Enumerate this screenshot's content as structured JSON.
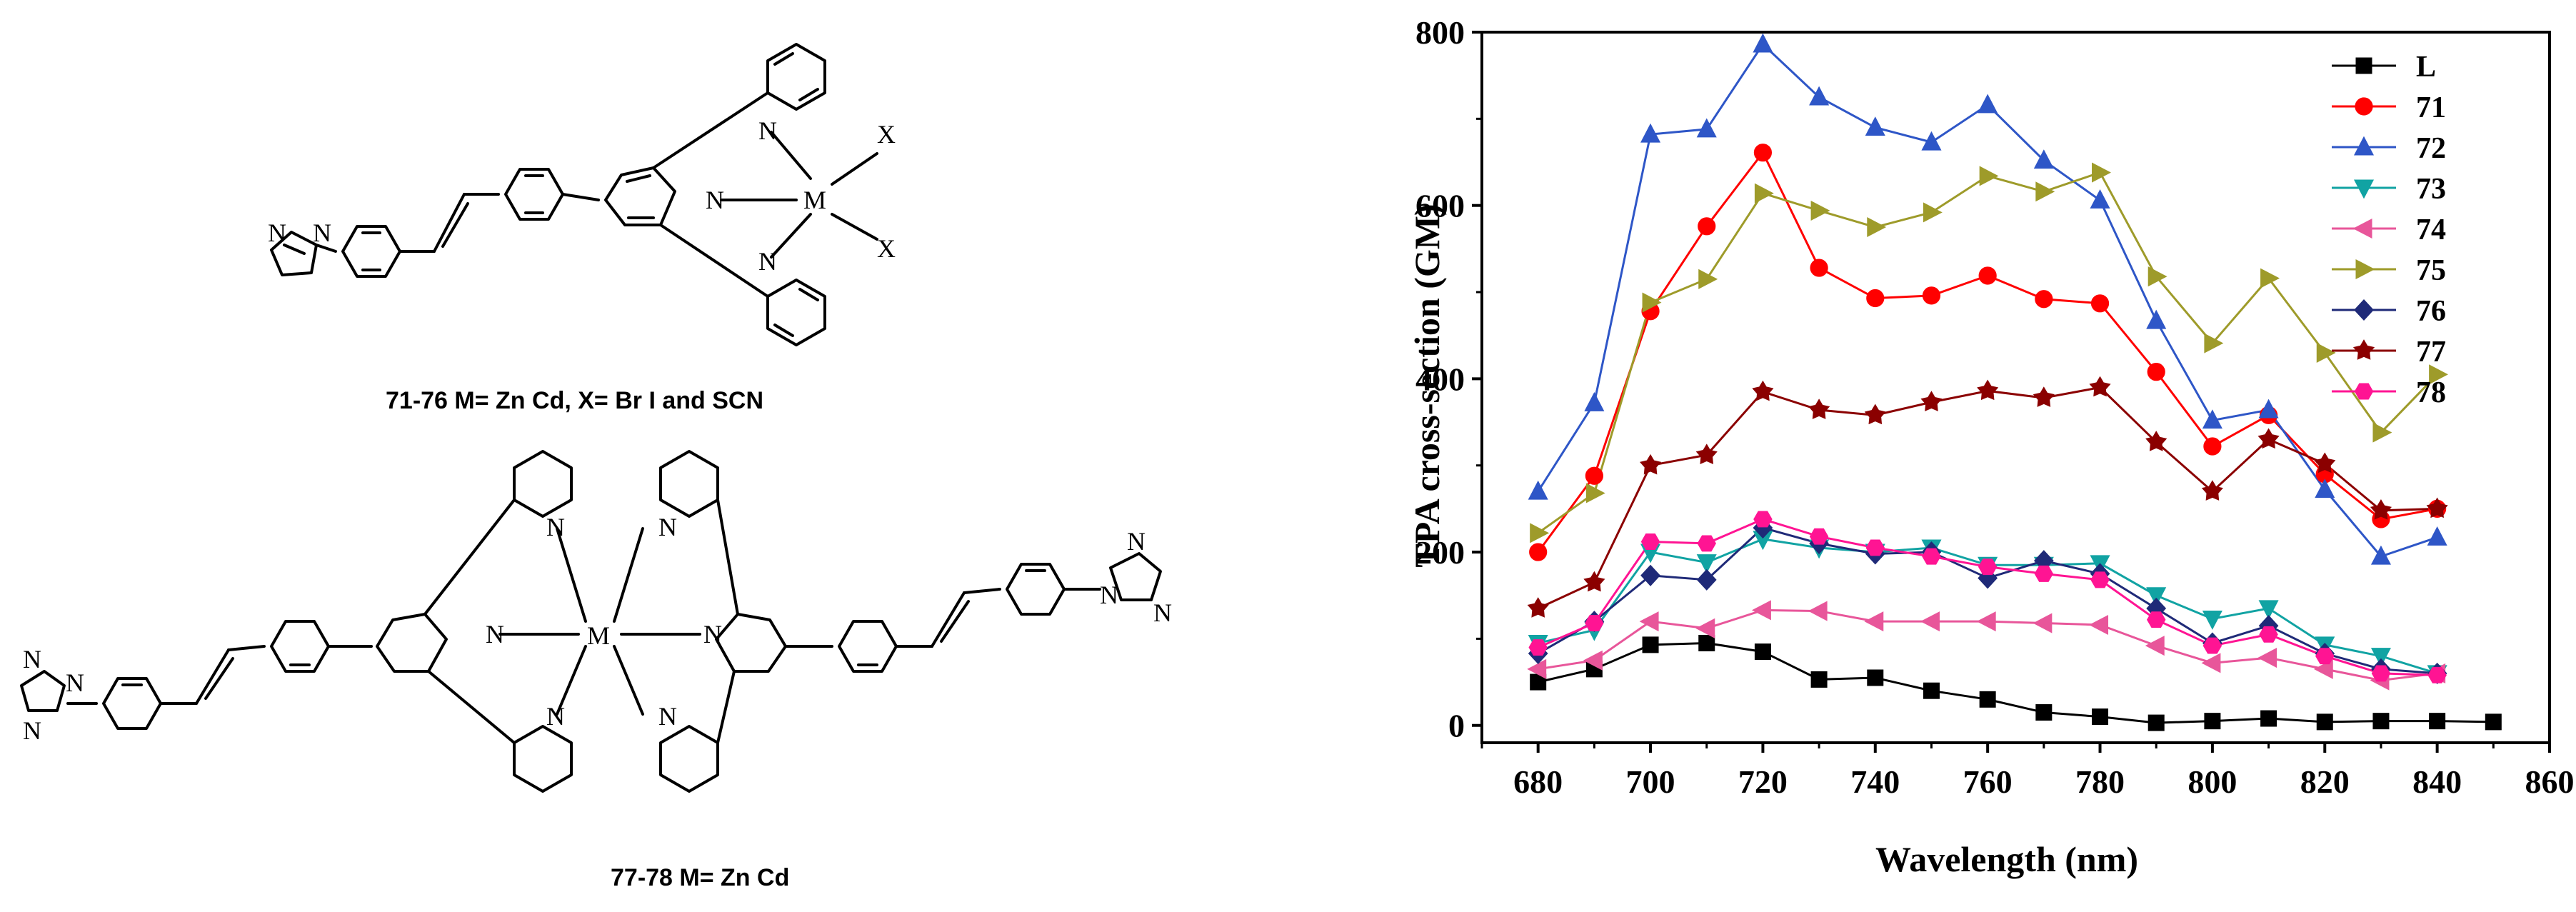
{
  "structures": {
    "top_caption": "71-76 M= Zn Cd, X= Br I and SCN",
    "bottom_caption": "77-78 M= Zn Cd",
    "atom_labels": {
      "N": "N",
      "M": "M",
      "X": "X"
    }
  },
  "chart_data": {
    "type": "line",
    "title": "",
    "xlabel": "Wavelength (nm)",
    "ylabel": "TPA cross-section (GM)",
    "xlim": [
      670,
      860
    ],
    "ylim": [
      -20,
      800
    ],
    "xticks": [
      680,
      700,
      720,
      740,
      760,
      780,
      800,
      820,
      840,
      860
    ],
    "yticks": [
      0,
      200,
      400,
      600,
      800
    ],
    "grid": false,
    "legend_position": "top-right",
    "series": [
      {
        "name": "L",
        "color": "#000000",
        "marker": "square",
        "x": [
          680,
          690,
          700,
          710,
          720,
          730,
          740,
          750,
          760,
          770,
          780,
          790,
          800,
          810,
          820,
          830,
          840,
          850
        ],
        "y": [
          50,
          65,
          93,
          95,
          85,
          53,
          55,
          40,
          30,
          15,
          10,
          3,
          5,
          8,
          4,
          5,
          5,
          4
        ]
      },
      {
        "name": "71",
        "color": "#ff0000",
        "marker": "circle",
        "x": [
          680,
          690,
          700,
          710,
          720,
          730,
          740,
          750,
          760,
          770,
          780,
          790,
          800,
          810,
          820,
          830,
          840
        ],
        "y": [
          200,
          288,
          478,
          576,
          661,
          528,
          493,
          496,
          519,
          492,
          487,
          408,
          322,
          358,
          290,
          238,
          250
        ]
      },
      {
        "name": "72",
        "color": "#2e56c7",
        "marker": "triangle-up",
        "x": [
          680,
          690,
          700,
          710,
          720,
          730,
          740,
          750,
          760,
          770,
          780,
          790,
          800,
          810,
          820,
          830,
          840
        ],
        "y": [
          270,
          372,
          682,
          688,
          786,
          725,
          690,
          673,
          716,
          652,
          606,
          467,
          352,
          364,
          272,
          195,
          217
        ]
      },
      {
        "name": "73",
        "color": "#11a3a3",
        "marker": "triangle-down",
        "x": [
          680,
          690,
          700,
          710,
          720,
          730,
          740,
          750,
          760,
          770,
          780,
          790,
          800,
          810,
          820,
          830,
          840
        ],
        "y": [
          95,
          110,
          200,
          188,
          215,
          205,
          200,
          205,
          185,
          185,
          187,
          150,
          123,
          135,
          93,
          80,
          60
        ]
      },
      {
        "name": "74",
        "color": "#e8569a",
        "marker": "triangle-left",
        "x": [
          680,
          690,
          700,
          710,
          720,
          730,
          740,
          750,
          760,
          770,
          780,
          790,
          800,
          810,
          820,
          830,
          840
        ],
        "y": [
          65,
          75,
          120,
          112,
          133,
          132,
          120,
          120,
          120,
          118,
          116,
          92,
          72,
          78,
          65,
          52,
          60
        ]
      },
      {
        "name": "75",
        "color": "#9e9b2a",
        "marker": "triangle-right",
        "x": [
          680,
          690,
          700,
          710,
          720,
          730,
          740,
          750,
          760,
          770,
          780,
          790,
          800,
          810,
          820,
          830,
          840
        ],
        "y": [
          222,
          268,
          488,
          515,
          614,
          594,
          575,
          592,
          634,
          616,
          638,
          518,
          441,
          516,
          430,
          338,
          405
        ]
      },
      {
        "name": "76",
        "color": "#1f2a78",
        "marker": "diamond",
        "x": [
          680,
          690,
          700,
          710,
          720,
          730,
          740,
          750,
          760,
          770,
          780,
          790,
          800,
          810,
          820,
          830,
          840
        ],
        "y": [
          83,
          120,
          173,
          168,
          228,
          210,
          198,
          200,
          170,
          190,
          175,
          135,
          95,
          115,
          83,
          65,
          60
        ]
      },
      {
        "name": "77",
        "color": "#8b0000",
        "marker": "star",
        "x": [
          680,
          690,
          700,
          710,
          720,
          730,
          740,
          750,
          760,
          770,
          780,
          790,
          800,
          810,
          820,
          830,
          840
        ],
        "y": [
          135,
          165,
          300,
          312,
          385,
          364,
          358,
          373,
          386,
          378,
          390,
          327,
          270,
          330,
          302,
          248,
          250
        ]
      },
      {
        "name": "78",
        "color": "#ff1493",
        "marker": "hexagon",
        "x": [
          680,
          690,
          700,
          710,
          720,
          730,
          740,
          750,
          760,
          770,
          780,
          790,
          800,
          810,
          820,
          830,
          840
        ],
        "y": [
          90,
          118,
          212,
          210,
          238,
          218,
          205,
          195,
          183,
          175,
          168,
          122,
          92,
          105,
          80,
          60,
          58
        ]
      }
    ]
  }
}
